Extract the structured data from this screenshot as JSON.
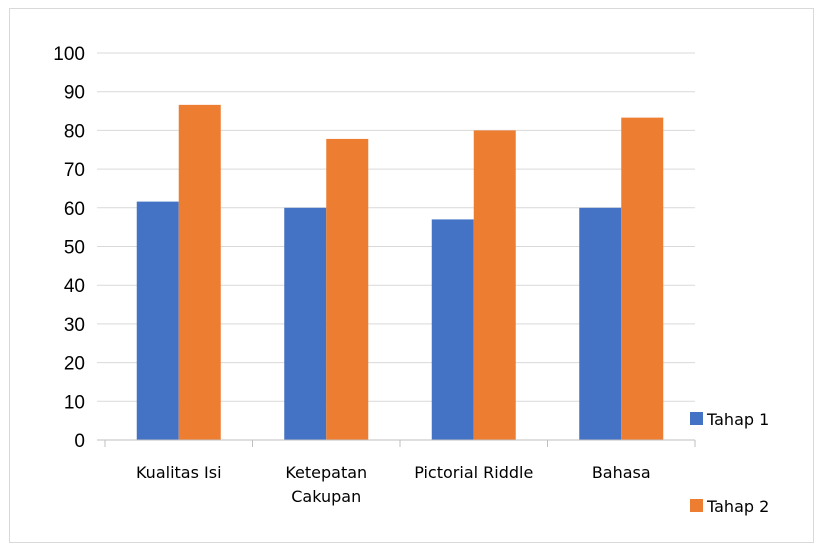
{
  "chart_data": {
    "type": "bar",
    "title": "",
    "xlabel": "",
    "ylabel": "",
    "categories": [
      [
        "Kualitas Isi"
      ],
      [
        "Ketepatan",
        "Cakupan"
      ],
      [
        "Pictorial Riddle"
      ],
      [
        "Bahasa"
      ]
    ],
    "series": [
      {
        "name": "Tahap 1",
        "color": "#4472c4",
        "values": [
          61.6,
          60,
          57,
          60
        ]
      },
      {
        "name": "Tahap 2",
        "color": "#ed7d31",
        "values": [
          86.6,
          77.8,
          80,
          83.3
        ]
      }
    ],
    "ylim": [
      0,
      100
    ],
    "yticks": [
      0,
      10,
      20,
      30,
      40,
      50,
      60,
      70,
      80,
      90,
      100
    ],
    "grid": true,
    "legend": "right"
  }
}
